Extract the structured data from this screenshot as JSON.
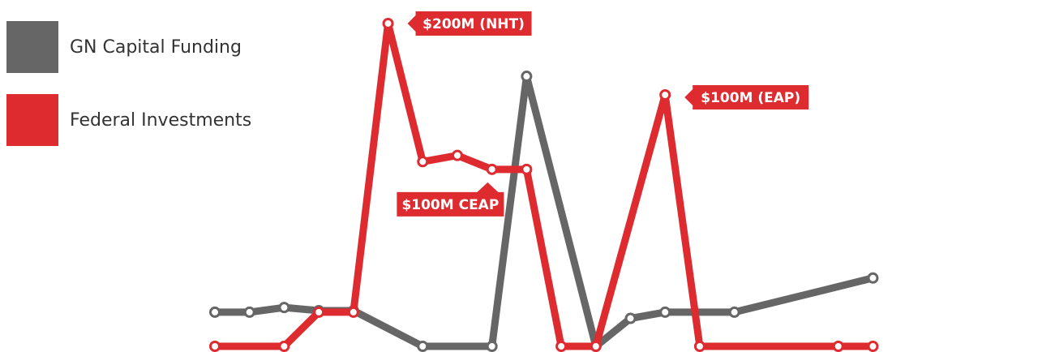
{
  "chart_data": {
    "type": "line",
    "x": [
      1,
      2,
      3,
      4,
      5,
      6,
      7,
      8,
      9,
      10,
      11,
      12,
      13,
      14,
      15,
      16,
      17,
      18,
      19,
      20,
      21,
      22,
      23,
      24,
      25
    ],
    "ylim": [
      0,
      220
    ],
    "grid": false,
    "legend_position": "top-left",
    "series": [
      {
        "name": "GN Capital Funding",
        "color": "#666666",
        "points": [
          [
            1,
            22
          ],
          [
            2,
            22
          ],
          [
            3,
            25
          ],
          [
            4,
            23
          ],
          [
            5,
            23
          ],
          [
            7,
            0
          ],
          [
            9,
            0
          ],
          [
            10,
            174
          ],
          [
            12,
            0
          ],
          [
            13,
            18
          ],
          [
            14,
            22
          ],
          [
            16,
            22
          ],
          [
            20,
            44
          ]
        ]
      },
      {
        "name": "Federal Investments",
        "color": "#dd2b30",
        "points": [
          [
            1,
            0
          ],
          [
            3,
            0
          ],
          [
            4,
            22
          ],
          [
            5,
            22
          ],
          [
            6,
            208
          ],
          [
            7,
            119
          ],
          [
            8,
            123
          ],
          [
            9,
            114
          ],
          [
            10,
            114
          ],
          [
            11,
            0
          ],
          [
            12,
            0
          ],
          [
            14,
            162
          ],
          [
            15,
            0
          ],
          [
            19,
            0
          ],
          [
            20,
            0
          ]
        ]
      }
    ],
    "annotations": [
      {
        "text": "$200M (NHT)",
        "x": 6,
        "y": 208
      },
      {
        "text": "$100M CEAP",
        "x": 10,
        "y": 114
      },
      {
        "text": "$100M (EAP)",
        "x": 14,
        "y": 162
      }
    ]
  }
}
